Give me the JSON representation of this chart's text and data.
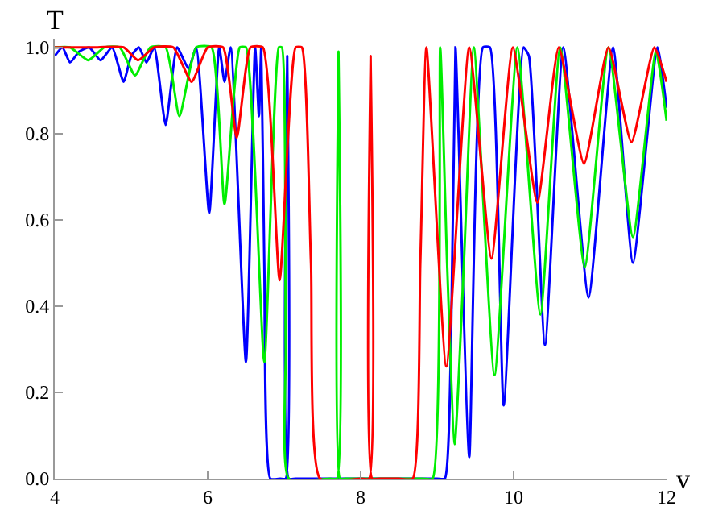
{
  "chart_data": {
    "type": "line",
    "xlabel": "v",
    "ylabel": "T",
    "xlim": [
      4,
      12
    ],
    "ylim": [
      0,
      1.02
    ],
    "xticks": [
      4,
      6,
      8,
      10,
      12
    ],
    "yticks": [
      {
        "value": 0,
        "label": "0.0"
      },
      0.2,
      0.4,
      0.6,
      0.8,
      {
        "value": 1,
        "label": "1.0"
      }
    ],
    "marker": "none",
    "line_style": "solid",
    "series": [
      {
        "color": "#0000ff",
        "x": [
          4.0,
          4.1,
          4.2,
          4.32,
          4.45,
          4.6,
          4.75,
          4.9,
          5.0,
          5.1,
          5.2,
          5.3,
          5.45,
          5.6,
          5.75,
          5.85,
          6.02,
          6.15,
          6.22,
          6.3,
          6.5,
          6.62,
          6.67,
          6.7,
          6.74,
          6.82,
          6.95,
          7.02,
          7.04,
          7.06,
          7.15,
          8.0,
          9.0,
          9.1,
          9.18,
          9.24,
          9.28,
          9.42,
          9.6,
          9.69,
          9.87,
          10.13,
          10.2,
          10.41,
          10.65,
          10.98,
          11.3,
          11.56,
          11.88,
          12.0
        ],
        "values": [
          0.98,
          1.0,
          0.965,
          0.99,
          1.0,
          0.97,
          1.0,
          0.92,
          0.98,
          1.0,
          0.965,
          1.0,
          0.82,
          1.0,
          0.95,
          1.0,
          0.615,
          1.0,
          0.92,
          1.0,
          0.27,
          1.0,
          0.84,
          1.0,
          0.5,
          0,
          0,
          0,
          0.98,
          0,
          0,
          0,
          0,
          0,
          0.3,
          1.0,
          0.8,
          0.05,
          1.0,
          1.0,
          0.17,
          1.0,
          0.98,
          0.31,
          1.0,
          0.42,
          1.0,
          0.5,
          1.0,
          0.86
        ]
      },
      {
        "color": "#00ee00",
        "x": [
          4.0,
          4.2,
          4.44,
          4.65,
          4.85,
          5.05,
          5.25,
          5.45,
          5.63,
          5.85,
          6.05,
          6.22,
          6.42,
          6.5,
          6.74,
          6.93,
          6.97,
          7.02,
          7.06,
          7.6,
          7.69,
          7.71,
          7.73,
          7.8,
          8.8,
          8.94,
          9.04,
          9.13,
          9.23,
          9.35,
          9.48,
          9.75,
          10.05,
          10.35,
          10.61,
          10.93,
          11.24,
          11.56,
          11.86,
          12.0
        ],
        "values": [
          1,
          1,
          0.97,
          1,
          1,
          0.935,
          1,
          1,
          0.84,
          1,
          1,
          0.636,
          1,
          1,
          0.27,
          1,
          1,
          0.3,
          0,
          0,
          0,
          0.99,
          0,
          0,
          0,
          0,
          1,
          0.5,
          0.08,
          0.5,
          1,
          0.24,
          1,
          0.38,
          1,
          0.49,
          1,
          0.56,
          0.99,
          0.83
        ]
      },
      {
        "color": "#ff0000",
        "x": [
          4.0,
          4.5,
          4.9,
          5.09,
          5.3,
          5.55,
          5.79,
          6.0,
          6.2,
          6.38,
          6.56,
          6.72,
          6.94,
          7.15,
          7.23,
          7.35,
          7.47,
          8.0,
          8.11,
          8.13,
          8.15,
          8.25,
          8.5,
          8.68,
          8.78,
          8.86,
          9.12,
          9.42,
          9.71,
          9.99,
          10.31,
          10.59,
          10.92,
          11.24,
          11.54,
          11.84,
          12.0
        ],
        "values": [
          1,
          1,
          1,
          0.97,
          1,
          1,
          0.92,
          1,
          1,
          0.79,
          1,
          1,
          0.46,
          1,
          1,
          0.5,
          0,
          0,
          0,
          0.98,
          0,
          0,
          0,
          0,
          0.5,
          1,
          0.26,
          1,
          0.51,
          1,
          0.64,
          1,
          0.73,
          1,
          0.78,
          1,
          0.92
        ]
      }
    ]
  }
}
